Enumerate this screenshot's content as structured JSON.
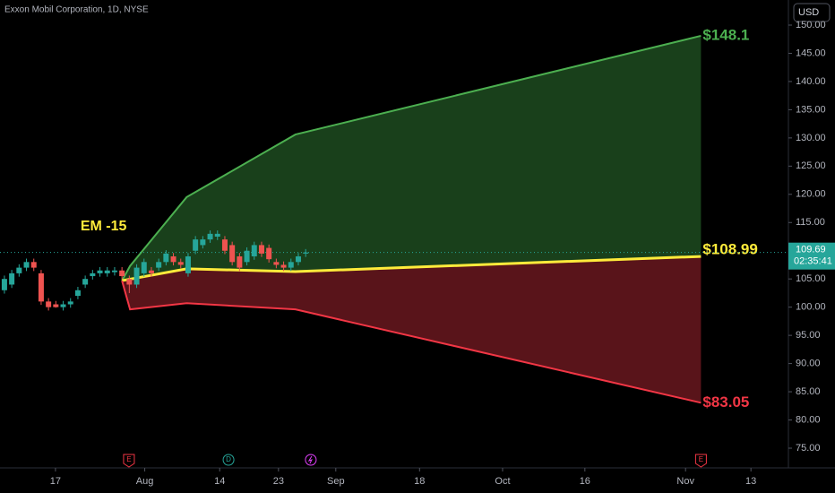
{
  "chart_data": {
    "type": "candlestick",
    "title": "Exxon Mobil Corporation, 1D, NYSE",
    "currency": "USD",
    "xlim": [
      -0.6,
      106.7
    ],
    "xticks": [
      {
        "value": 6.95,
        "label": "17"
      },
      {
        "value": 19.1,
        "label": "Aug"
      },
      {
        "value": 29.3,
        "label": "14"
      },
      {
        "value": 37.3,
        "label": "23"
      },
      {
        "value": 45.1,
        "label": "Sep"
      },
      {
        "value": 56.5,
        "label": "18"
      },
      {
        "value": 67.8,
        "label": "Oct"
      },
      {
        "value": 79.0,
        "label": "16"
      },
      {
        "value": 92.7,
        "label": "Nov"
      },
      {
        "value": 101.6,
        "label": "13"
      }
    ],
    "ylim": [
      71.82,
      154.45
    ],
    "yticks": [
      {
        "value": 75,
        "label": "75.00"
      },
      {
        "value": 80,
        "label": "80.00"
      },
      {
        "value": 85,
        "label": "85.00"
      },
      {
        "value": 90,
        "label": "90.00"
      },
      {
        "value": 95,
        "label": "95.00"
      },
      {
        "value": 100,
        "label": "100.00"
      },
      {
        "value": 105,
        "label": "105.00"
      },
      {
        "value": 110,
        "label": "110.00"
      },
      {
        "value": 115,
        "label": "115.00"
      },
      {
        "value": 120,
        "label": "120.00"
      },
      {
        "value": 125,
        "label": "125.00"
      },
      {
        "value": 130,
        "label": "130.00"
      },
      {
        "value": 135,
        "label": "135.00"
      },
      {
        "value": 140,
        "label": "140.00"
      },
      {
        "value": 145,
        "label": "145.00"
      },
      {
        "value": 150,
        "label": "150.00"
      }
    ],
    "up_color": "#26a69a",
    "down_color": "#ef5350",
    "open": [
      103,
      104,
      106,
      107,
      108,
      106,
      101,
      100.5,
      100,
      100.5,
      102,
      104,
      105.5,
      106,
      106,
      106.2,
      106.5,
      105,
      104,
      106,
      106.5,
      107,
      108,
      109,
      108,
      106,
      110,
      111,
      112,
      112.5,
      112,
      111,
      109,
      108,
      109,
      111,
      110.5,
      108,
      107.5,
      107,
      108,
      109.5
    ],
    "high": [
      105.6,
      106.6,
      107.6,
      108.6,
      108.6,
      106.6,
      101.6,
      101.1,
      101.1,
      101.6,
      103.6,
      105.6,
      106.6,
      107.1,
      107.1,
      107.1,
      107.1,
      105.6,
      107.6,
      108.6,
      107.1,
      108.6,
      110.1,
      109.6,
      108.6,
      109.6,
      112.6,
      112.6,
      113.6,
      113.6,
      112.6,
      111.6,
      109.6,
      110.6,
      111.6,
      111.6,
      111.1,
      108.6,
      108.1,
      108.6,
      109.6,
      110.3
    ],
    "low": [
      102.4,
      103.4,
      105.4,
      106.4,
      106.4,
      100.4,
      99.4,
      99.9,
      99.4,
      99.9,
      101.4,
      103.4,
      104.9,
      105.4,
      105.4,
      105.6,
      104.9,
      102.5,
      103.4,
      105.4,
      105.4,
      106.4,
      107.4,
      107.4,
      106.9,
      105.4,
      109.4,
      110.4,
      111.4,
      111.9,
      109.4,
      107.4,
      106.4,
      107.4,
      108.4,
      108.9,
      107.9,
      106.9,
      106.4,
      106.4,
      107.4,
      108.9
    ],
    "close": [
      105,
      106,
      107,
      108,
      107,
      101,
      100,
      100,
      100.5,
      101,
      103,
      105,
      106,
      106.5,
      106.5,
      106.5,
      105.5,
      104,
      107,
      108,
      106,
      108,
      109.5,
      108,
      107.5,
      109,
      112,
      112,
      113,
      113,
      110,
      108,
      107,
      110,
      111,
      109.5,
      108.5,
      107.5,
      107,
      108,
      109,
      109.69
    ],
    "last_price": 109.69,
    "countdown": "02:35:41",
    "last_price_color": "#26a69a",
    "annotation": {
      "text": "EM -15",
      "x": 13.5,
      "y": 114.3,
      "color": "#ffeb3b"
    },
    "cone": [
      {
        "x": [
          16,
          17.1,
          24.8,
          39.6,
          94.8
        ],
        "values": [
          104.7,
          107.3,
          119.5,
          130.6,
          148.1
        ],
        "value_labels": [
          null,
          null,
          null,
          null,
          "$148.1"
        ],
        "color": "#4caf50",
        "fill": "rgba(56,142,60,0.45)"
      },
      {
        "x": [
          16,
          24.8,
          39.6,
          94.8
        ],
        "values": [
          104.7,
          106.8,
          106.3,
          108.99
        ],
        "value_labels": [
          null,
          null,
          null,
          "$108.99"
        ],
        "color": "#ffeb3b"
      },
      {
        "x": [
          16,
          17.1,
          24.8,
          39.6,
          94.8
        ],
        "values": [
          104.7,
          99.6,
          100.7,
          99.6,
          83.05
        ],
        "value_labels": [
          null,
          null,
          null,
          null,
          "$83.05"
        ],
        "color": "#f23645",
        "fill": "rgba(178,40,51,0.5)"
      }
    ],
    "events": [
      {
        "x": 16.95,
        "label": "E",
        "color": "#f23645"
      },
      {
        "x": 30.5,
        "label": "D",
        "color": "#26a69a"
      },
      {
        "x": 41.7,
        "label": null,
        "color": "#e040fb"
      },
      {
        "x": 94.8,
        "label": "E",
        "color": "#f23645"
      }
    ]
  }
}
